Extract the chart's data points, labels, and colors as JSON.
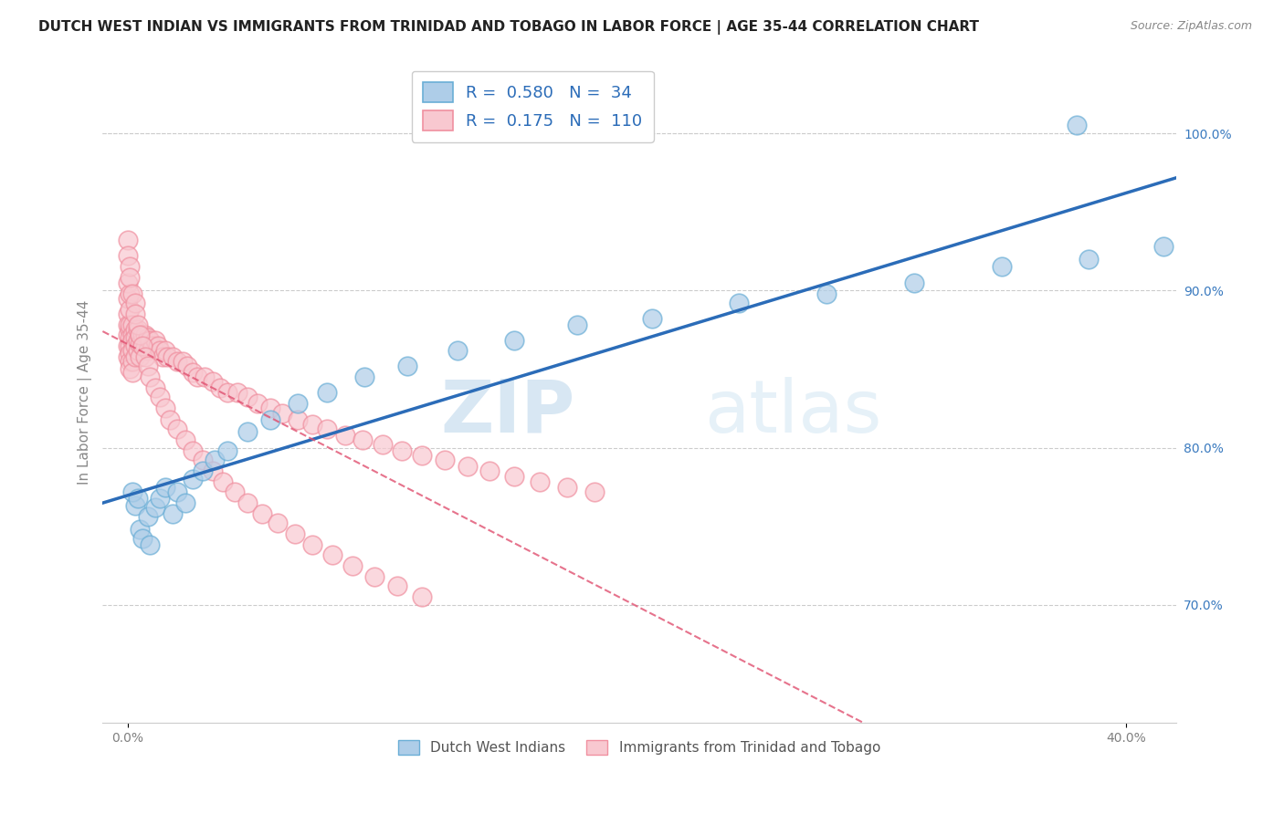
{
  "title": "DUTCH WEST INDIAN VS IMMIGRANTS FROM TRINIDAD AND TOBAGO IN LABOR FORCE | AGE 35-44 CORRELATION CHART",
  "source": "Source: ZipAtlas.com",
  "ylabel": "In Labor Force | Age 35-44",
  "blue_R": 0.58,
  "blue_N": 34,
  "pink_R": 0.175,
  "pink_N": 110,
  "blue_color": "#6aaed6",
  "blue_fill": "#aecde8",
  "pink_color": "#f090a0",
  "pink_fill": "#f8c8d0",
  "blue_line_color": "#2b6cb8",
  "pink_line_color": "#e05070",
  "legend_blue_label": "Dutch West Indians",
  "legend_pink_label": "Immigrants from Trinidad and Tobago",
  "watermark_zip": "ZIP",
  "watermark_atlas": "atlas",
  "xlim": [
    -0.01,
    0.42
  ],
  "ylim": [
    0.625,
    1.045
  ],
  "yticks": [
    0.7,
    0.8,
    0.9,
    1.0
  ],
  "yticklabels": [
    "70.0%",
    "80.0%",
    "90.0%",
    "100.0%"
  ],
  "xtick_left": 0.0,
  "xtick_right": 0.4,
  "xticklabel_left": "0.0%",
  "xticklabel_right": "40.0%",
  "right_ytick_color": "#3a7abf",
  "title_fontsize": 11,
  "axis_label_fontsize": 11,
  "tick_fontsize": 10,
  "blue_scatter_x": [
    0.003,
    0.005,
    0.006,
    0.008,
    0.009,
    0.011,
    0.013,
    0.015,
    0.018,
    0.02,
    0.023,
    0.026,
    0.03,
    0.035,
    0.04,
    0.048,
    0.057,
    0.068,
    0.08,
    0.095,
    0.112,
    0.132,
    0.155,
    0.18,
    0.21,
    0.245,
    0.28,
    0.315,
    0.35,
    0.385,
    0.415,
    0.002,
    0.004,
    0.38
  ],
  "blue_scatter_y": [
    0.763,
    0.748,
    0.742,
    0.756,
    0.738,
    0.762,
    0.768,
    0.775,
    0.758,
    0.772,
    0.765,
    0.78,
    0.785,
    0.792,
    0.798,
    0.81,
    0.818,
    0.828,
    0.835,
    0.845,
    0.852,
    0.862,
    0.868,
    0.878,
    0.882,
    0.892,
    0.898,
    0.905,
    0.915,
    0.92,
    0.928,
    0.772,
    0.768,
    1.005
  ],
  "pink_scatter_x": [
    0.0,
    0.0,
    0.0,
    0.0,
    0.0,
    0.0,
    0.0,
    0.001,
    0.001,
    0.001,
    0.001,
    0.001,
    0.001,
    0.001,
    0.001,
    0.001,
    0.002,
    0.002,
    0.002,
    0.002,
    0.002,
    0.002,
    0.003,
    0.003,
    0.003,
    0.003,
    0.004,
    0.004,
    0.004,
    0.005,
    0.005,
    0.005,
    0.006,
    0.006,
    0.007,
    0.007,
    0.008,
    0.008,
    0.009,
    0.01,
    0.011,
    0.012,
    0.013,
    0.014,
    0.015,
    0.016,
    0.018,
    0.02,
    0.022,
    0.024,
    0.026,
    0.028,
    0.031,
    0.034,
    0.037,
    0.04,
    0.044,
    0.048,
    0.052,
    0.057,
    0.062,
    0.068,
    0.074,
    0.08,
    0.087,
    0.094,
    0.102,
    0.11,
    0.118,
    0.127,
    0.136,
    0.145,
    0.155,
    0.165,
    0.176,
    0.187,
    0.0,
    0.0,
    0.001,
    0.001,
    0.002,
    0.003,
    0.003,
    0.004,
    0.005,
    0.006,
    0.007,
    0.008,
    0.009,
    0.011,
    0.013,
    0.015,
    0.017,
    0.02,
    0.023,
    0.026,
    0.03,
    0.034,
    0.038,
    0.043,
    0.048,
    0.054,
    0.06,
    0.067,
    0.074,
    0.082,
    0.09,
    0.099,
    0.108,
    0.118
  ],
  "pink_scatter_y": [
    0.885,
    0.878,
    0.872,
    0.865,
    0.858,
    0.895,
    0.905,
    0.875,
    0.87,
    0.865,
    0.86,
    0.855,
    0.85,
    0.878,
    0.888,
    0.898,
    0.878,
    0.872,
    0.868,
    0.862,
    0.855,
    0.848,
    0.875,
    0.87,
    0.865,
    0.858,
    0.875,
    0.868,
    0.862,
    0.872,
    0.866,
    0.858,
    0.872,
    0.865,
    0.872,
    0.864,
    0.87,
    0.862,
    0.868,
    0.865,
    0.868,
    0.865,
    0.862,
    0.858,
    0.862,
    0.858,
    0.858,
    0.855,
    0.855,
    0.852,
    0.848,
    0.845,
    0.845,
    0.842,
    0.838,
    0.835,
    0.835,
    0.832,
    0.828,
    0.825,
    0.822,
    0.818,
    0.815,
    0.812,
    0.808,
    0.805,
    0.802,
    0.798,
    0.795,
    0.792,
    0.788,
    0.785,
    0.782,
    0.778,
    0.775,
    0.772,
    0.932,
    0.922,
    0.915,
    0.908,
    0.898,
    0.892,
    0.885,
    0.878,
    0.872,
    0.865,
    0.858,
    0.852,
    0.845,
    0.838,
    0.832,
    0.825,
    0.818,
    0.812,
    0.805,
    0.798,
    0.792,
    0.785,
    0.778,
    0.772,
    0.765,
    0.758,
    0.752,
    0.745,
    0.738,
    0.732,
    0.725,
    0.718,
    0.712,
    0.705
  ]
}
